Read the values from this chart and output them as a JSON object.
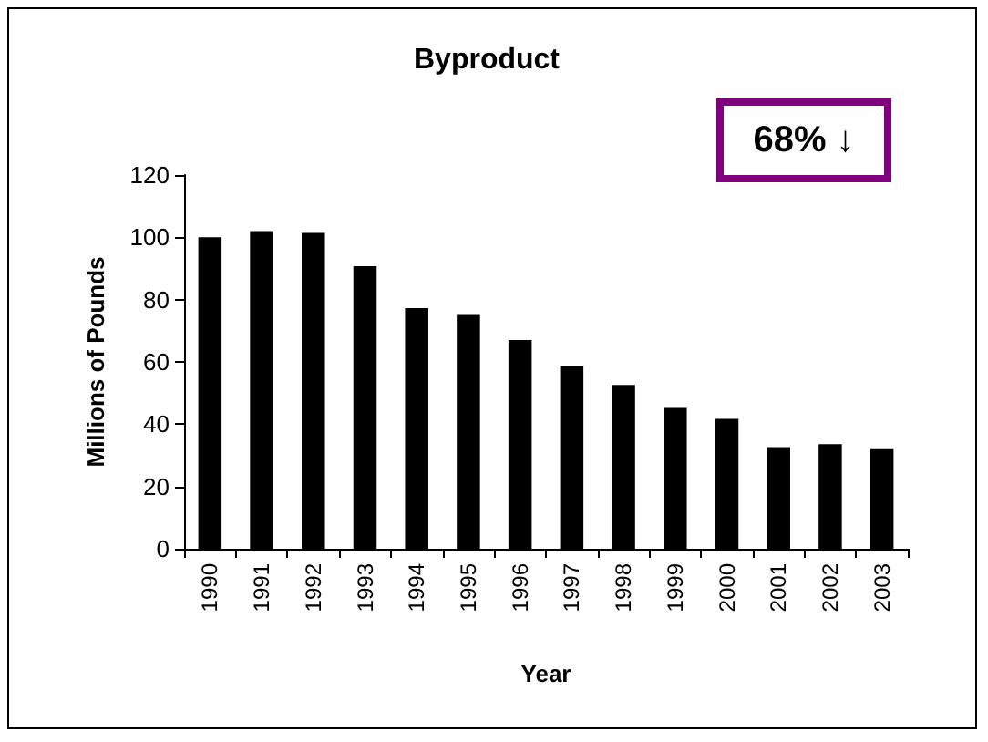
{
  "chart_data": {
    "type": "bar",
    "title": "Byproduct",
    "xlabel": "Year",
    "ylabel": "Millions of Pounds",
    "categories": [
      "1990",
      "1991",
      "1992",
      "1993",
      "1994",
      "1995",
      "1996",
      "1997",
      "1998",
      "1999",
      "2000",
      "2001",
      "2002",
      "2003"
    ],
    "values": [
      100,
      102,
      101.4,
      90.7,
      77.3,
      75.1,
      67,
      58.8,
      52.6,
      45.2,
      41.7,
      32.6,
      33.6,
      32
    ],
    "color": "#000000",
    "ylim": [
      0,
      120
    ],
    "yticks": [
      0,
      20,
      40,
      60,
      80,
      100,
      120
    ],
    "grid": false,
    "annotations": [
      "68% ↓"
    ]
  }
}
